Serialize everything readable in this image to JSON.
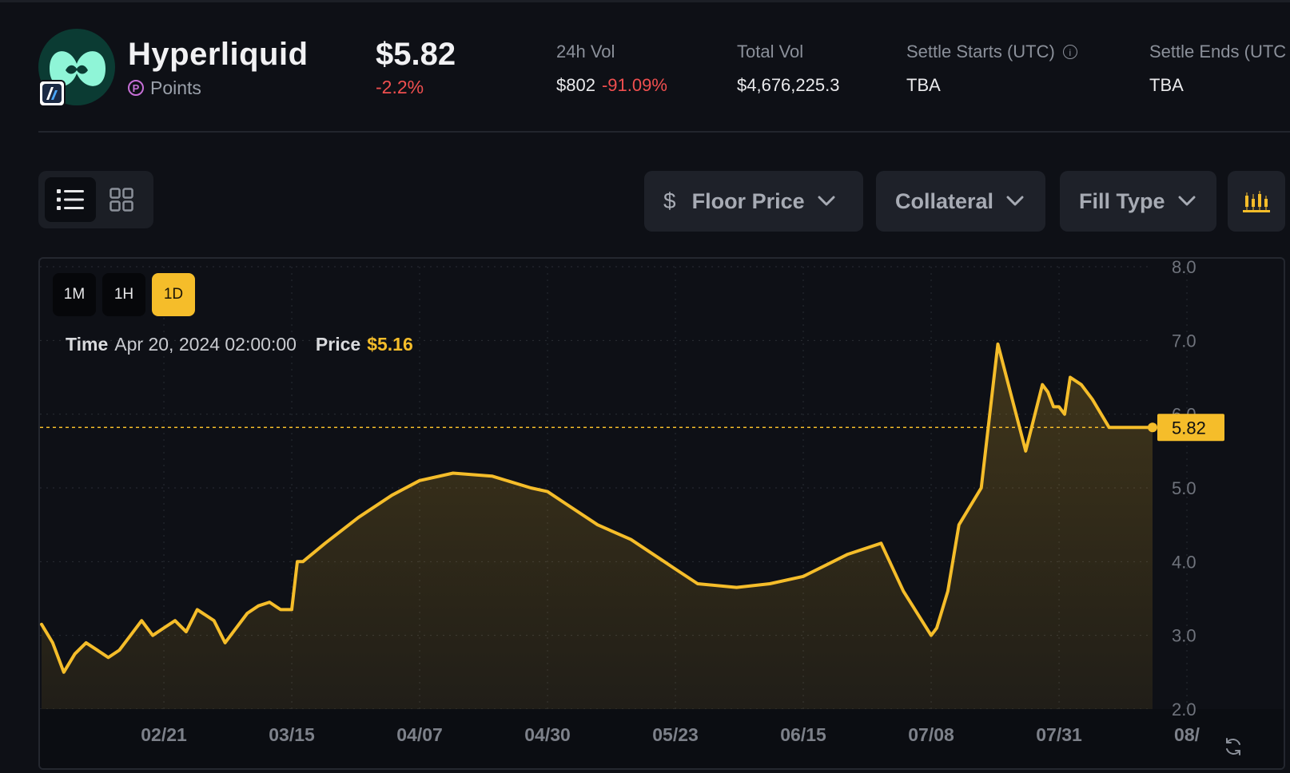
{
  "header": {
    "title": "Hyperliquid",
    "subtitle": "Points",
    "price": "$5.82",
    "price_change": "-2.2%",
    "stats": [
      {
        "label": "24h Vol",
        "value": "$802",
        "change": "-91.09%"
      },
      {
        "label": "Total Vol",
        "value": "$4,676,225.3"
      },
      {
        "label": "Settle Starts (UTC)",
        "value": "TBA"
      },
      {
        "label": "Settle Ends (UTC",
        "value": "TBA"
      }
    ]
  },
  "icons": {
    "logo": "hyperliquid-logo",
    "chain_badge": "arbitrum-badge",
    "points": "points-p-icon",
    "info": "info-icon",
    "list_view": "list-view-icon",
    "grid_view": "grid-view-icon",
    "chevron": "chevron-down-icon",
    "chart_type": "candlestick-chart-icon",
    "refresh": "refresh-icon"
  },
  "toolbar": {
    "floor_price_symbol": "$",
    "floor_price": "Floor Price",
    "collateral": "Collateral",
    "fill_type": "Fill Type"
  },
  "colors": {
    "background": "#0e1016",
    "accent": "#f5bd2a",
    "negative": "#f04f4f",
    "logo_mint": "#8ff5d7",
    "points_purple": "#c66fd6"
  },
  "chart": {
    "ranges": [
      "1M",
      "1H",
      "1D"
    ],
    "active_range": "1D",
    "tooltip": {
      "time_label": "Time",
      "time_value": "Apr 20, 2024 02:00:00",
      "price_label": "Price",
      "price_value": "$5.16"
    }
  },
  "chart_data": {
    "type": "area",
    "x_tick_labels": [
      "02/21",
      "03/15",
      "04/07",
      "04/30",
      "05/23",
      "06/15",
      "07/08",
      "07/31",
      "08/"
    ],
    "y_tick_labels": [
      "8.0",
      "7.0",
      "6.0",
      "5.0",
      "4.0",
      "3.0",
      "2.0"
    ],
    "ylim": [
      2.0,
      8.0
    ],
    "current_value": 5.82,
    "current_value_label": "5.82",
    "grid": true,
    "line_color": "#f5bd2a",
    "x": [
      "01/30",
      "02/01",
      "02/03",
      "02/05",
      "02/07",
      "02/09",
      "02/11",
      "02/13",
      "02/15",
      "02/17",
      "02/19",
      "02/21",
      "02/23",
      "02/25",
      "02/27",
      "03/01",
      "03/03",
      "03/05",
      "03/07",
      "03/09",
      "03/11",
      "03/13",
      "03/15",
      "03/16",
      "03/17",
      "03/21",
      "03/27",
      "04/02",
      "04/07",
      "04/13",
      "04/20",
      "04/27",
      "04/30",
      "05/03",
      "05/09",
      "05/15",
      "05/21",
      "05/23",
      "05/27",
      "06/03",
      "06/09",
      "06/15",
      "06/19",
      "06/23",
      "06/29",
      "07/03",
      "07/08",
      "07/09",
      "07/11",
      "07/13",
      "07/17",
      "07/20",
      "07/25",
      "07/28",
      "07/29",
      "07/30",
      "07/31",
      "08/01",
      "08/02",
      "08/04",
      "08/06",
      "08/09",
      "08/12",
      "08/14",
      "08/16",
      "08/18",
      "08/20"
    ],
    "y": [
      3.15,
      2.9,
      2.5,
      2.75,
      2.9,
      2.8,
      2.7,
      2.8,
      3.0,
      3.2,
      3.0,
      3.1,
      3.2,
      3.05,
      3.35,
      3.2,
      2.9,
      3.1,
      3.3,
      3.4,
      3.45,
      3.35,
      3.35,
      4.0,
      4.0,
      4.25,
      4.6,
      4.9,
      5.1,
      5.2,
      5.16,
      5.0,
      4.95,
      4.8,
      4.5,
      4.3,
      4.0,
      3.9,
      3.7,
      3.65,
      3.7,
      3.8,
      3.95,
      4.1,
      4.25,
      3.6,
      3.0,
      3.1,
      3.6,
      4.5,
      5.0,
      6.95,
      5.5,
      6.4,
      6.3,
      6.1,
      6.1,
      6.0,
      6.5,
      6.4,
      6.2,
      5.82,
      5.82,
      5.82,
      5.82,
      5.82,
      5.82
    ]
  }
}
